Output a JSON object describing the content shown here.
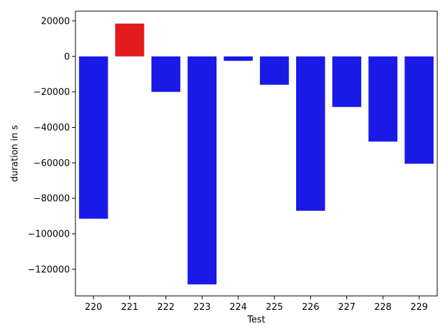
{
  "chart_data": {
    "type": "bar",
    "xlabel": "Test",
    "ylabel": "duration in s",
    "categories": [
      "220",
      "221",
      "222",
      "223",
      "224",
      "225",
      "226",
      "227",
      "228",
      "229"
    ],
    "values": [
      -91500,
      18500,
      -20000,
      -128500,
      -2500,
      -16000,
      -87000,
      -28500,
      -48000,
      -60500
    ],
    "ylim": [
      -135000,
      25500
    ],
    "yticks": [
      20000,
      0,
      -20000,
      -40000,
      -60000,
      -80000,
      -100000,
      -120000
    ],
    "ytick_labels": [
      "20000",
      "0",
      "−20000",
      "−40000",
      "−60000",
      "−80000",
      "−100000",
      "−120000"
    ],
    "grid": false,
    "colors": {
      "positive": "#e31a1c",
      "negative": "#1a1ae6",
      "axis": "#000000"
    }
  }
}
